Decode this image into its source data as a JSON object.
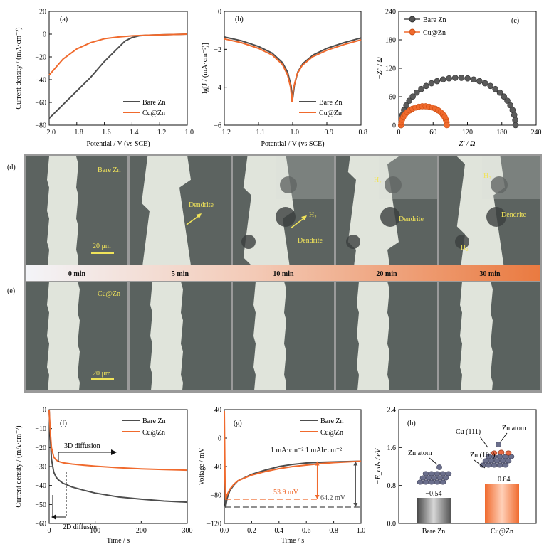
{
  "colors": {
    "bare": "#4d4d4d",
    "cu": "#f06a2d",
    "yellow": "#f0e35a"
  },
  "chart_data": [
    {
      "type": "line",
      "panel": "(a)",
      "xlabel": "Potential / V (vs SCE)",
      "ylabel": "Current density / (mA·cm⁻²)",
      "xlim": [
        -2.0,
        -1.0
      ],
      "ylim": [
        -80,
        20
      ],
      "xticks": [
        -2.0,
        -1.8,
        -1.6,
        -1.4,
        -1.2,
        -1.0
      ],
      "yticks": [
        20,
        0,
        -20,
        -40,
        -60,
        -80
      ],
      "legend_position": "lower-right",
      "series": [
        {
          "name": "Bare Zn",
          "color": "#4d4d4d",
          "x": [
            -2.0,
            -1.9,
            -1.8,
            -1.7,
            -1.6,
            -1.5,
            -1.45,
            -1.4,
            -1.35,
            -1.3,
            -1.2,
            -1.1,
            -1.0
          ],
          "y": [
            -74,
            -62,
            -50,
            -38,
            -24,
            -12,
            -6,
            -3,
            -1.5,
            -1,
            -0.6,
            -0.3,
            0
          ]
        },
        {
          "name": "Cu@Zn",
          "color": "#f06a2d",
          "x": [
            -2.0,
            -1.9,
            -1.8,
            -1.7,
            -1.6,
            -1.5,
            -1.4,
            -1.3,
            -1.2,
            -1.1,
            -1.0
          ],
          "y": [
            -36,
            -22,
            -13,
            -7.5,
            -4,
            -2.5,
            -1.5,
            -1,
            -0.6,
            -0.3,
            0
          ]
        }
      ]
    },
    {
      "type": "line",
      "panel": "(b)",
      "xlabel": "Potential / V (vs SCE)",
      "ylabel": "lg[J / (mA·cm⁻²)]",
      "xlim": [
        -1.2,
        -0.8
      ],
      "ylim": [
        -6,
        0
      ],
      "xticks": [
        -1.2,
        -1.1,
        -1.0,
        -0.9,
        -0.8
      ],
      "yticks": [
        0,
        -2,
        -4,
        -6
      ],
      "legend_position": "lower-right",
      "series": [
        {
          "name": "Bare Zn",
          "color": "#4d4d4d",
          "x": [
            -1.2,
            -1.15,
            -1.1,
            -1.06,
            -1.03,
            -1.015,
            -1.005,
            -1.0,
            -0.995,
            -0.985,
            -0.97,
            -0.94,
            -0.9,
            -0.85,
            -0.8
          ],
          "y": [
            -1.35,
            -1.55,
            -1.85,
            -2.2,
            -2.7,
            -3.2,
            -3.9,
            -4.6,
            -3.9,
            -3.2,
            -2.75,
            -2.3,
            -1.95,
            -1.65,
            -1.4
          ]
        },
        {
          "name": "Cu@Zn",
          "color": "#f06a2d",
          "x": [
            -1.2,
            -1.15,
            -1.1,
            -1.06,
            -1.03,
            -1.015,
            -1.006,
            -1.002,
            -0.997,
            -0.987,
            -0.972,
            -0.942,
            -0.9,
            -0.85,
            -0.8
          ],
          "y": [
            -1.45,
            -1.65,
            -1.95,
            -2.3,
            -2.8,
            -3.35,
            -4.0,
            -4.75,
            -4.0,
            -3.3,
            -2.85,
            -2.4,
            -2.05,
            -1.75,
            -1.5
          ]
        }
      ]
    },
    {
      "type": "scatter",
      "panel": "(c)",
      "xlabel": "Z′ / Ω",
      "ylabel": "−Z″ / Ω",
      "xlim": [
        0,
        240
      ],
      "ylim": [
        0,
        240
      ],
      "xticks": [
        0,
        60,
        120,
        180,
        240
      ],
      "yticks": [
        0,
        60,
        120,
        180,
        240
      ],
      "legend_position": "top-left",
      "series": [
        {
          "name": "Bare Zn",
          "color": "#4d4d4d",
          "center": 104,
          "radius": 100,
          "start": 4,
          "points": 30
        },
        {
          "name": "Cu@Zn",
          "color": "#f06a2d",
          "center": 44,
          "radius": 40,
          "start": 4,
          "points": 22
        }
      ]
    },
    {
      "type": "line",
      "panel": "(f)",
      "xlabel": "Time / s",
      "ylabel": "Current density / (mA·cm⁻²)",
      "xlim": [
        0,
        300
      ],
      "ylim": [
        -60,
        0
      ],
      "xticks": [
        0,
        100,
        200,
        300
      ],
      "yticks": [
        0,
        -10,
        -20,
        -30,
        -40,
        -50,
        -60
      ],
      "legend_position": "top-right",
      "series": [
        {
          "name": "Bare Zn",
          "color": "#4d4d4d",
          "x": [
            0,
            2,
            5,
            10,
            15,
            20,
            30,
            50,
            75,
            100,
            150,
            200,
            250,
            300
          ],
          "y": [
            0,
            -12,
            -26,
            -33,
            -35.5,
            -37,
            -38.8,
            -40.8,
            -42.5,
            -44,
            -46,
            -47.2,
            -48.2,
            -48.8
          ]
        },
        {
          "name": "Cu@Zn",
          "color": "#f06a2d",
          "x": [
            0,
            2,
            5,
            10,
            15,
            20,
            30,
            50,
            75,
            100,
            150,
            200,
            250,
            300
          ],
          "y": [
            0,
            -10,
            -20,
            -25,
            -26.5,
            -27.3,
            -28,
            -28.7,
            -29.3,
            -29.8,
            -30.6,
            -31.2,
            -31.6,
            -31.9
          ]
        }
      ],
      "annotations": [
        "3D diffusion",
        "2D diffusion"
      ]
    },
    {
      "type": "line",
      "panel": "(g)",
      "xlabel": "Time / s",
      "ylabel": "Voltage / mV",
      "xlim": [
        0,
        1.0
      ],
      "ylim": [
        -120,
        40
      ],
      "xticks": [
        0.0,
        0.2,
        0.4,
        0.6,
        0.8,
        1.0
      ],
      "yticks": [
        40,
        0,
        -40,
        -80,
        -120
      ],
      "legend_position": "top-right",
      "condition": "1 mA·cm⁻²  1 mAh·cm⁻²",
      "series": [
        {
          "name": "Bare Zn",
          "color": "#4d4d4d",
          "x": [
            0.0,
            0.005,
            0.01,
            0.02,
            0.04,
            0.07,
            0.1,
            0.2,
            0.3,
            0.4,
            0.5,
            0.6,
            0.7,
            0.8,
            0.9,
            1.0
          ],
          "y": [
            -60,
            -90,
            -97,
            -85,
            -74,
            -66,
            -60,
            -51,
            -45,
            -40,
            -37,
            -35,
            -34,
            -33.5,
            -33,
            -32.5
          ]
        },
        {
          "name": "Cu@Zn",
          "color": "#f06a2d",
          "x": [
            0.0,
            0.005,
            0.01,
            0.02,
            0.04,
            0.07,
            0.1,
            0.2,
            0.3,
            0.4,
            0.5,
            0.6,
            0.7,
            0.8,
            0.9,
            1.0
          ],
          "y": [
            38,
            -60,
            -86,
            -80,
            -72,
            -65,
            -60,
            -52,
            -47,
            -43,
            -40,
            -38,
            -36,
            -34.5,
            -33.5,
            -32.5
          ]
        }
      ],
      "overpotentials": [
        {
          "label": "53.9 mV",
          "color": "#f06a2d",
          "level": -86
        },
        {
          "label": "64.2 mV",
          "color": "#4d4d4d",
          "level": -97
        }
      ]
    },
    {
      "type": "bar",
      "panel": "(h)",
      "ylabel": "−E_ads / eV",
      "ylim": [
        0,
        2.4
      ],
      "yticks": [
        0.0,
        0.8,
        1.6,
        2.4
      ],
      "categories": [
        "Bare Zn",
        "Cu@Zn"
      ],
      "values": [
        0.54,
        0.84
      ],
      "value_labels": [
        "−0.54",
        "−0.84"
      ],
      "annotations": [
        "Zn atom",
        "Cu (111)",
        "Zn atom",
        "Zn (101)"
      ]
    }
  ],
  "micrographs": {
    "timeline": [
      "0 min",
      "5 min",
      "10 min",
      "20 min",
      "30 min"
    ],
    "row_d": {
      "panel": "(d)",
      "sample": "Bare Zn",
      "scale": "20 μm",
      "labels": [
        "Dendrite",
        "H₂",
        "Dendrite",
        "H₂",
        "Dendrite",
        "H₂",
        "Dendrite",
        "H₂"
      ]
    },
    "row_e": {
      "panel": "(e)",
      "sample": "Cu@Zn",
      "scale": "20 μm"
    }
  }
}
